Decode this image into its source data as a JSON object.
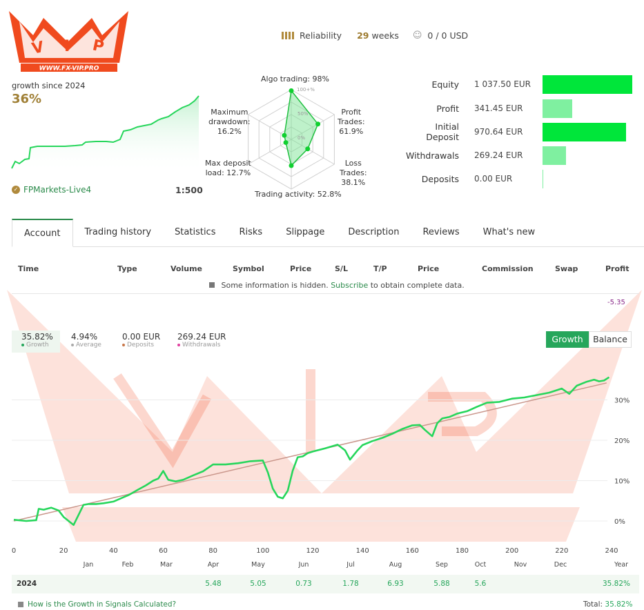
{
  "logo": {
    "text": "WWW.FX-VIP.PRO",
    "letters": "VIP"
  },
  "top_stats": {
    "reliability_label": "Reliability",
    "weeks_value": "29",
    "weeks_label": "weeks",
    "subscribers": "0 / 0 USD"
  },
  "summary": {
    "growth_since": "growth since 2024",
    "growth_pct": "36%",
    "broker": "FPMarkets-Live4",
    "leverage": "1:500"
  },
  "radar": {
    "algo": "Algo trading: 98%",
    "profit1": "Profit",
    "profit2": "Trades:",
    "profit3": "61.9%",
    "loss1": "Loss",
    "loss2": "Trades:",
    "loss3": "38.1%",
    "activity": "Trading activity: 52.8%",
    "deposit1": "Max deposit",
    "deposit2": "load: 12.7%",
    "drawdown1": "Maximum",
    "drawdown2": "drawdown:",
    "drawdown3": "16.2%",
    "tick_100": "100+%",
    "tick_50": "50%",
    "tick_0": "0%",
    "values": {
      "algo": 98,
      "profit": 61.9,
      "loss": 38.1,
      "activity": 52.8,
      "deposit": 12.7,
      "drawdown": 16.2
    }
  },
  "equity_table": [
    {
      "label": "Equity",
      "value": "1 037.50 EUR",
      "level": 1.0,
      "color": "#00e63a"
    },
    {
      "label": "Profit",
      "value": "341.45 EUR",
      "level": 0.33,
      "color": "#7ff0a0"
    },
    {
      "label": "Initial Deposit",
      "value": "970.64 EUR",
      "level": 0.93,
      "color": "#00e63a"
    },
    {
      "label": "Withdrawals",
      "value": "269.24 EUR",
      "level": 0.26,
      "color": "#7ff0a0"
    },
    {
      "label": "Deposits",
      "value": "0.00 EUR",
      "level": 0.0,
      "color": "#7ff0a0"
    }
  ],
  "tabs": [
    "Account",
    "Trading history",
    "Statistics",
    "Risks",
    "Slippage",
    "Description",
    "Reviews",
    "What's new"
  ],
  "table_headers": [
    "Time",
    "Type",
    "Volume",
    "Symbol",
    "Price",
    "S/L",
    "T/P",
    "Price",
    "Commission",
    "Swap",
    "Profit"
  ],
  "hidden_info": {
    "before": "Some information is hidden.",
    "link": "Subscribe",
    "after": "to obtain complete data."
  },
  "neg_value": "-5.35",
  "legend": {
    "growth_val": "35.82%",
    "growth_lbl": "Growth",
    "avg_val": "4.94%",
    "avg_lbl": "Average",
    "dep_val": "0.00 EUR",
    "dep_lbl": "Deposits",
    "wd_val": "269.24 EUR",
    "wd_lbl": "Withdrawals"
  },
  "buttons": {
    "growth": "Growth",
    "balance": "Balance"
  },
  "chart_data": {
    "type": "line",
    "xlabel": "",
    "ylabel": "",
    "x_ticks": [
      "0",
      "20",
      "40",
      "60",
      "80",
      "100",
      "120",
      "140",
      "160",
      "180",
      "200",
      "220",
      "240"
    ],
    "y_ticks": [
      "0%",
      "10%",
      "20%",
      "30%"
    ],
    "xlim": [
      0,
      240
    ],
    "ylim": [
      0,
      36
    ],
    "months": [
      "Jan",
      "Feb",
      "Mar",
      "Apr",
      "May",
      "Jun",
      "Jul",
      "Aug",
      "Sep",
      "Oct",
      "Nov",
      "Dec",
      "Year"
    ],
    "series": [
      {
        "x": [
          0,
          5,
          9,
          10,
          12,
          15,
          18,
          20,
          24,
          28,
          30,
          33,
          36,
          40,
          43,
          46,
          50,
          53,
          56,
          58,
          60,
          62,
          65,
          68,
          72,
          76,
          80,
          85,
          90,
          95,
          100,
          102,
          104,
          106,
          108,
          110,
          112,
          114,
          116,
          118,
          120,
          125,
          130,
          133,
          135,
          138,
          140,
          144,
          148,
          152,
          156,
          160,
          163,
          165,
          168,
          170,
          172,
          175,
          178,
          182,
          186,
          190,
          195,
          200,
          205,
          210,
          215,
          220,
          223,
          226,
          230,
          233,
          235,
          237,
          239
        ],
        "y": [
          0.3,
          0.0,
          0.2,
          3.0,
          2.8,
          3.3,
          2.6,
          1.0,
          -1.0,
          4.0,
          4.2,
          4.2,
          4.4,
          4.8,
          5.6,
          6.4,
          7.8,
          8.8,
          10.0,
          10.5,
          12.4,
          10.2,
          9.8,
          10.2,
          11.3,
          12.3,
          14.0,
          14.0,
          14.3,
          14.8,
          15.0,
          12.0,
          8.0,
          6.0,
          5.6,
          7.5,
          12.5,
          15.8,
          16.0,
          16.8,
          17.2,
          18.0,
          18.9,
          17.5,
          15.2,
          17.5,
          18.8,
          19.8,
          20.6,
          21.6,
          22.8,
          23.7,
          23.8,
          22.6,
          21.0,
          24.2,
          25.4,
          25.8,
          26.6,
          27.2,
          28.3,
          29.3,
          29.5,
          30.3,
          30.6,
          31.2,
          31.8,
          32.8,
          31.5,
          33.5,
          34.5,
          35.0,
          34.6,
          34.8,
          35.6
        ],
        "color": "#26d65b"
      },
      {
        "name": "",
        "x": [
          0,
          238
        ],
        "y": [
          0,
          34.2
        ],
        "color": "#c9958a"
      }
    ]
  },
  "monthly": {
    "year": "2024",
    "values": [
      "",
      "",
      "",
      "5.48",
      "5.05",
      "0.73",
      "1.78",
      "6.93",
      "5.88",
      "5.6",
      "",
      "",
      "35.82%"
    ]
  },
  "footer": {
    "link": "How is the Growth in Signals Calculated?",
    "total_label": "Total:",
    "total_value": "35.82%"
  }
}
